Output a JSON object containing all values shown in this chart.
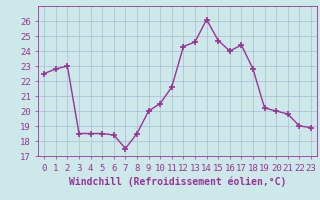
{
  "x": [
    0,
    1,
    2,
    3,
    4,
    5,
    6,
    7,
    8,
    9,
    10,
    11,
    12,
    13,
    14,
    15,
    16,
    17,
    18,
    19,
    20,
    21,
    22,
    23
  ],
  "y": [
    22.5,
    22.8,
    23.0,
    18.5,
    18.5,
    18.5,
    18.4,
    17.5,
    18.5,
    20.0,
    20.5,
    21.6,
    24.3,
    24.6,
    26.1,
    24.7,
    24.0,
    24.4,
    22.8,
    20.2,
    20.0,
    19.8,
    19.0,
    18.9
  ],
  "line_color": "#993399",
  "marker": "+",
  "marker_size": 5,
  "linewidth": 1.0,
  "xlabel": "Windchill (Refroidissement éolien,°C)",
  "xlabel_fontsize": 7,
  "ylim": [
    17,
    27
  ],
  "xlim": [
    -0.5,
    23.5
  ],
  "yticks": [
    17,
    18,
    19,
    20,
    21,
    22,
    23,
    24,
    25,
    26
  ],
  "xticks": [
    0,
    1,
    2,
    3,
    4,
    5,
    6,
    7,
    8,
    9,
    10,
    11,
    12,
    13,
    14,
    15,
    16,
    17,
    18,
    19,
    20,
    21,
    22,
    23
  ],
  "tick_fontsize": 6.5,
  "background_color": "#cce8e8",
  "grid_color": "#aabbd4",
  "spine_color": "#993399",
  "tick_color": "#993399"
}
